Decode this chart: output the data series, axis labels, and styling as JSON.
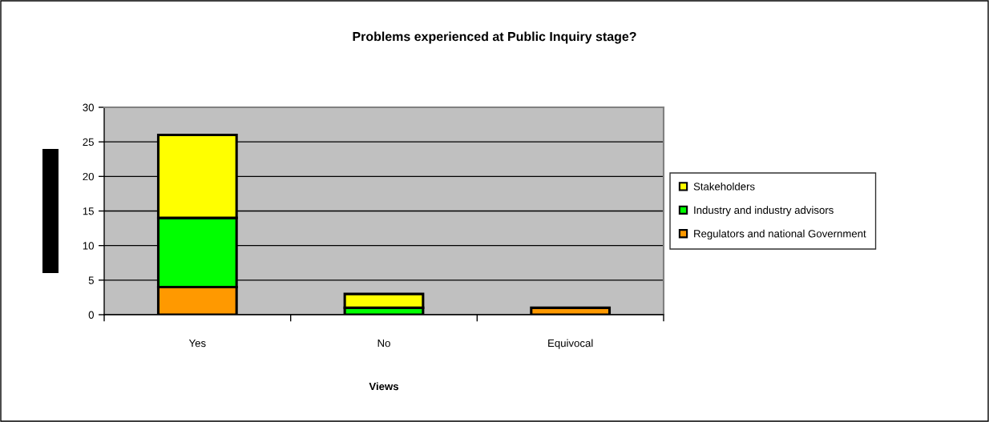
{
  "chart_data": {
    "type": "bar",
    "title": "Problems experienced at Public Inquiry stage?",
    "xlabel": "Views",
    "categories": [
      "Yes",
      "No",
      "Equivocal"
    ],
    "series": [
      {
        "name": "Regulators and national Government",
        "color": "#ff9900",
        "values": [
          4,
          0,
          1
        ]
      },
      {
        "name": "Industry and industry advisors",
        "color": "#00ff00",
        "values": [
          10,
          1,
          0
        ]
      },
      {
        "name": "Stakeholders",
        "color": "#ffff00",
        "values": [
          12,
          2,
          0
        ]
      }
    ],
    "stacked": true,
    "ylim": [
      0,
      30
    ],
    "yticks": [
      0,
      5,
      10,
      15,
      20,
      25,
      30
    ],
    "grid": "y",
    "legend": "right"
  }
}
